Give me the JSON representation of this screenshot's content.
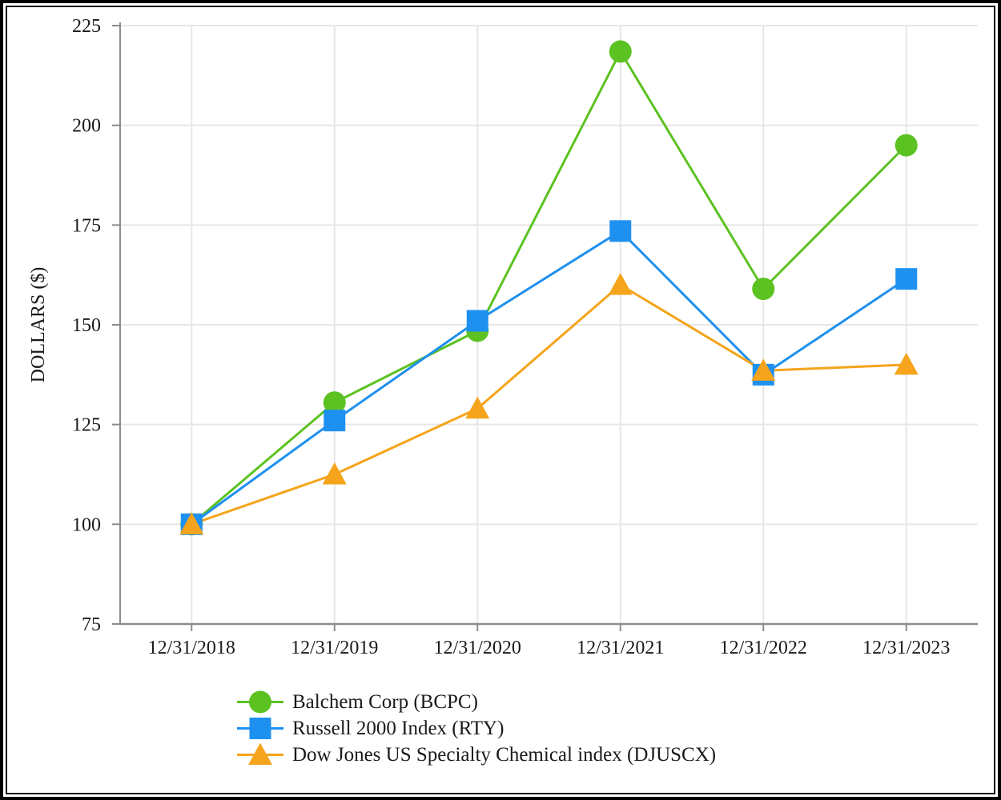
{
  "chart_data": {
    "type": "line",
    "title": "",
    "ylabel": "DOLLARS ($)",
    "xlabel": "",
    "x_labels": [
      "12/31/2018",
      "12/31/2019",
      "12/31/2020",
      "12/31/2021",
      "12/31/2022",
      "12/31/2023"
    ],
    "yticks": [
      75,
      100,
      125,
      150,
      175,
      200,
      225
    ],
    "ylim": [
      75,
      225
    ],
    "grid": true,
    "legend_position": "bottom-left",
    "series": [
      {
        "name": "Balchem Corp (BCPC)",
        "marker": "circle",
        "color": "#5CC221",
        "values": [
          100,
          130.5,
          148.5,
          218.5,
          159,
          195
        ]
      },
      {
        "name": "Russell 2000 Index (RTY)",
        "marker": "square",
        "color": "#1E90F0",
        "values": [
          100,
          126,
          151,
          173.5,
          137.5,
          161.5
        ]
      },
      {
        "name": "Dow Jones US Specialty Chemical index (DJUSCX)",
        "marker": "triangle",
        "color": "#F5A41B",
        "values": [
          100,
          112.5,
          129,
          160,
          138.5,
          140
        ]
      }
    ]
  },
  "style": {
    "grid_color": "#E7E7E7",
    "axis_color": "#8C8C8C",
    "tick_color": "#8C8C8C",
    "text_color": "#1A1A1A",
    "frame_color": "#000000",
    "background": "#FFFFFF"
  }
}
